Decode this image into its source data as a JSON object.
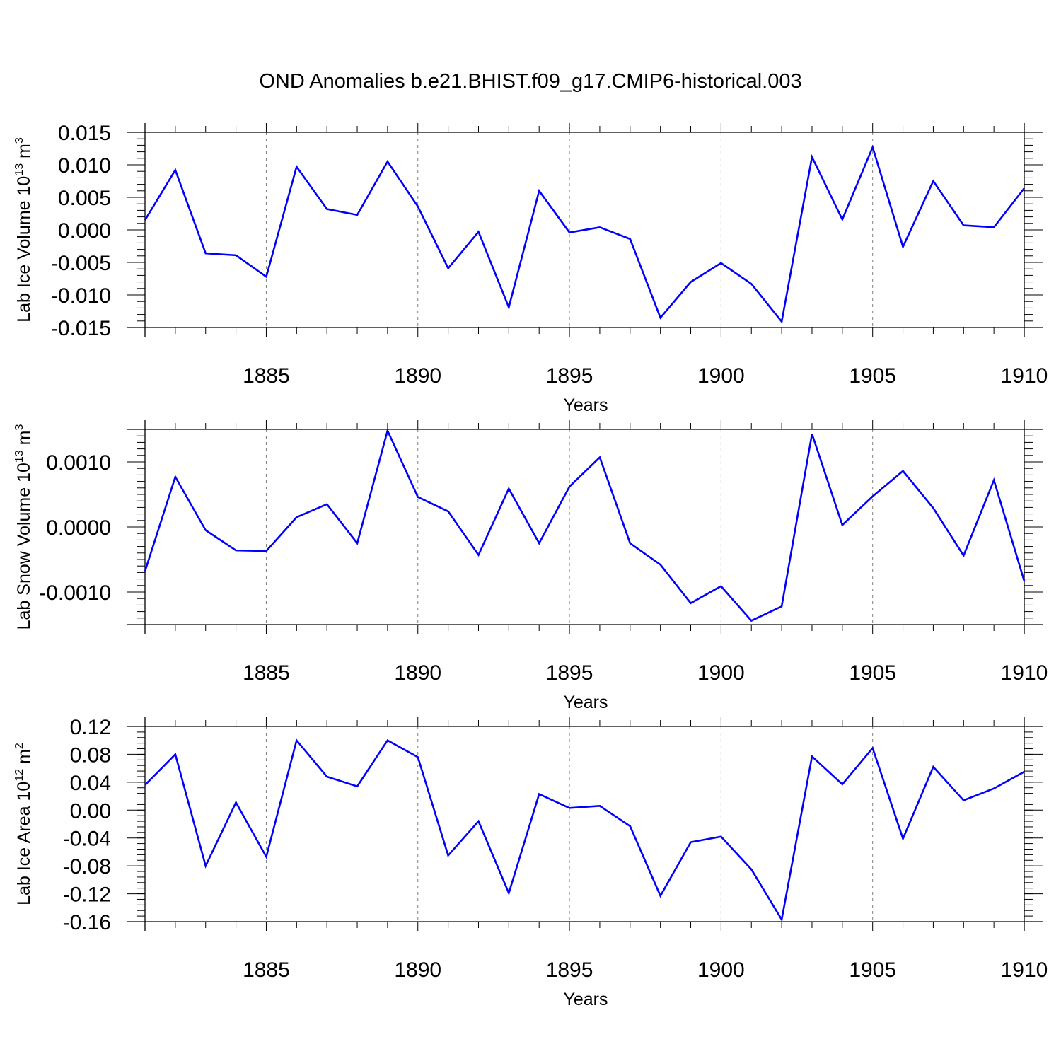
{
  "title": "OND Anomalies b.e21.BHIST.f09_g17.CMIP6-historical.003",
  "colors": {
    "line": "#0000ff",
    "axis": "#000000",
    "grid": "#808080"
  },
  "chart_data": [
    {
      "type": "line",
      "ylabel_main": "Lab Ice Volume 10",
      "ylabel_sup": "13",
      "ylabel_unit": " m",
      "ylabel_unit_sup": "3",
      "xlabel": "Years",
      "xlim": [
        1881,
        1910
      ],
      "ylim": [
        -0.015,
        0.015
      ],
      "yticks": [
        -0.015,
        -0.01,
        -0.005,
        0.0,
        0.005,
        0.01,
        0.015
      ],
      "ytick_labels": [
        "-0.015",
        "-0.010",
        "-0.005",
        "0.000",
        "0.005",
        "0.010",
        "0.015"
      ],
      "yminor_step": 0.001,
      "xticks": [
        1885,
        1890,
        1895,
        1900,
        1905,
        1910
      ],
      "xtick_labels": [
        "1885",
        "1890",
        "1895",
        "1900",
        "1905",
        "1910"
      ],
      "grid": "vertical dashed at major x ticks",
      "series": [
        {
          "name": "Lab Ice Volume",
          "x": [
            1881,
            1882,
            1883,
            1884,
            1885,
            1886,
            1887,
            1888,
            1889,
            1890,
            1891,
            1892,
            1893,
            1894,
            1895,
            1896,
            1897,
            1898,
            1899,
            1900,
            1901,
            1902,
            1903,
            1904,
            1905,
            1906,
            1907,
            1908,
            1909,
            1910
          ],
          "values": [
            0.0015,
            0.0092,
            -0.0036,
            -0.0039,
            -0.0072,
            0.0097,
            0.0032,
            0.0023,
            0.0105,
            0.0036,
            -0.0059,
            -0.0003,
            -0.0119,
            0.006,
            -0.0004,
            0.0004,
            -0.0014,
            -0.0135,
            -0.008,
            -0.0051,
            -0.0083,
            -0.0141,
            0.0112,
            0.0016,
            0.0127,
            -0.0026,
            0.0075,
            0.0007,
            0.0004,
            0.0064
          ]
        }
      ]
    },
    {
      "type": "line",
      "ylabel_main": "Lab Snow Volume 10",
      "ylabel_sup": "13",
      "ylabel_unit": " m",
      "ylabel_unit_sup": "3",
      "xlabel": "Years",
      "xlim": [
        1881,
        1910
      ],
      "ylim": [
        -0.0015,
        0.0015
      ],
      "yticks": [
        -0.001,
        0.0,
        0.001
      ],
      "ytick_labels": [
        "-0.0010",
        "0.0000",
        "0.0010"
      ],
      "yminor_step": 0.0001,
      "xticks": [
        1885,
        1890,
        1895,
        1900,
        1905,
        1910
      ],
      "xtick_labels": [
        "1885",
        "1890",
        "1895",
        "1900",
        "1905",
        "1910"
      ],
      "grid": "vertical dashed at major x ticks",
      "series": [
        {
          "name": "Lab Snow Volume",
          "x": [
            1881,
            1882,
            1883,
            1884,
            1885,
            1886,
            1887,
            1888,
            1889,
            1890,
            1891,
            1892,
            1893,
            1894,
            1895,
            1896,
            1897,
            1898,
            1899,
            1900,
            1901,
            1902,
            1903,
            1904,
            1905,
            1906,
            1907,
            1908,
            1909,
            1910
          ],
          "values": [
            -0.00068,
            0.00077,
            -5e-05,
            -0.00036,
            -0.00037,
            0.00015,
            0.00035,
            -0.00025,
            0.00148,
            0.00046,
            0.00024,
            -0.00043,
            0.00059,
            -0.00025,
            0.00062,
            0.00107,
            -0.00025,
            -0.00058,
            -0.00117,
            -0.00091,
            -0.00144,
            -0.00122,
            0.00143,
            3e-05,
            0.00047,
            0.00086,
            0.00029,
            -0.00044,
            0.00072,
            -0.00083
          ]
        }
      ]
    },
    {
      "type": "line",
      "ylabel_main": "Lab Ice Area 10",
      "ylabel_sup": "12",
      "ylabel_unit": " m",
      "ylabel_unit_sup": "2",
      "xlabel": "Years",
      "xlim": [
        1881,
        1910
      ],
      "ylim": [
        -0.16,
        0.12
      ],
      "yticks": [
        -0.16,
        -0.12,
        -0.08,
        -0.04,
        0.0,
        0.04,
        0.08,
        0.12
      ],
      "ytick_labels": [
        "-0.16",
        "-0.12",
        "-0.08",
        "-0.04",
        "0.00",
        "0.04",
        "0.08",
        "0.12"
      ],
      "yminor_step": 0.008,
      "xticks": [
        1885,
        1890,
        1895,
        1900,
        1905,
        1910
      ],
      "xtick_labels": [
        "1885",
        "1890",
        "1895",
        "1900",
        "1905",
        "1910"
      ],
      "grid": "vertical dashed at major x ticks",
      "series": [
        {
          "name": "Lab Ice Area",
          "x": [
            1881,
            1882,
            1883,
            1884,
            1885,
            1886,
            1887,
            1888,
            1889,
            1890,
            1891,
            1892,
            1893,
            1894,
            1895,
            1896,
            1897,
            1898,
            1899,
            1900,
            1901,
            1902,
            1903,
            1904,
            1905,
            1906,
            1907,
            1908,
            1909,
            1910
          ],
          "values": [
            0.036,
            0.08,
            -0.08,
            0.011,
            -0.067,
            0.1,
            0.048,
            0.034,
            0.1,
            0.076,
            -0.065,
            -0.016,
            -0.119,
            0.023,
            0.003,
            0.006,
            -0.023,
            -0.123,
            -0.046,
            -0.038,
            -0.085,
            -0.157,
            0.077,
            0.037,
            0.089,
            -0.041,
            0.062,
            0.014,
            0.031,
            0.055
          ]
        }
      ]
    }
  ]
}
